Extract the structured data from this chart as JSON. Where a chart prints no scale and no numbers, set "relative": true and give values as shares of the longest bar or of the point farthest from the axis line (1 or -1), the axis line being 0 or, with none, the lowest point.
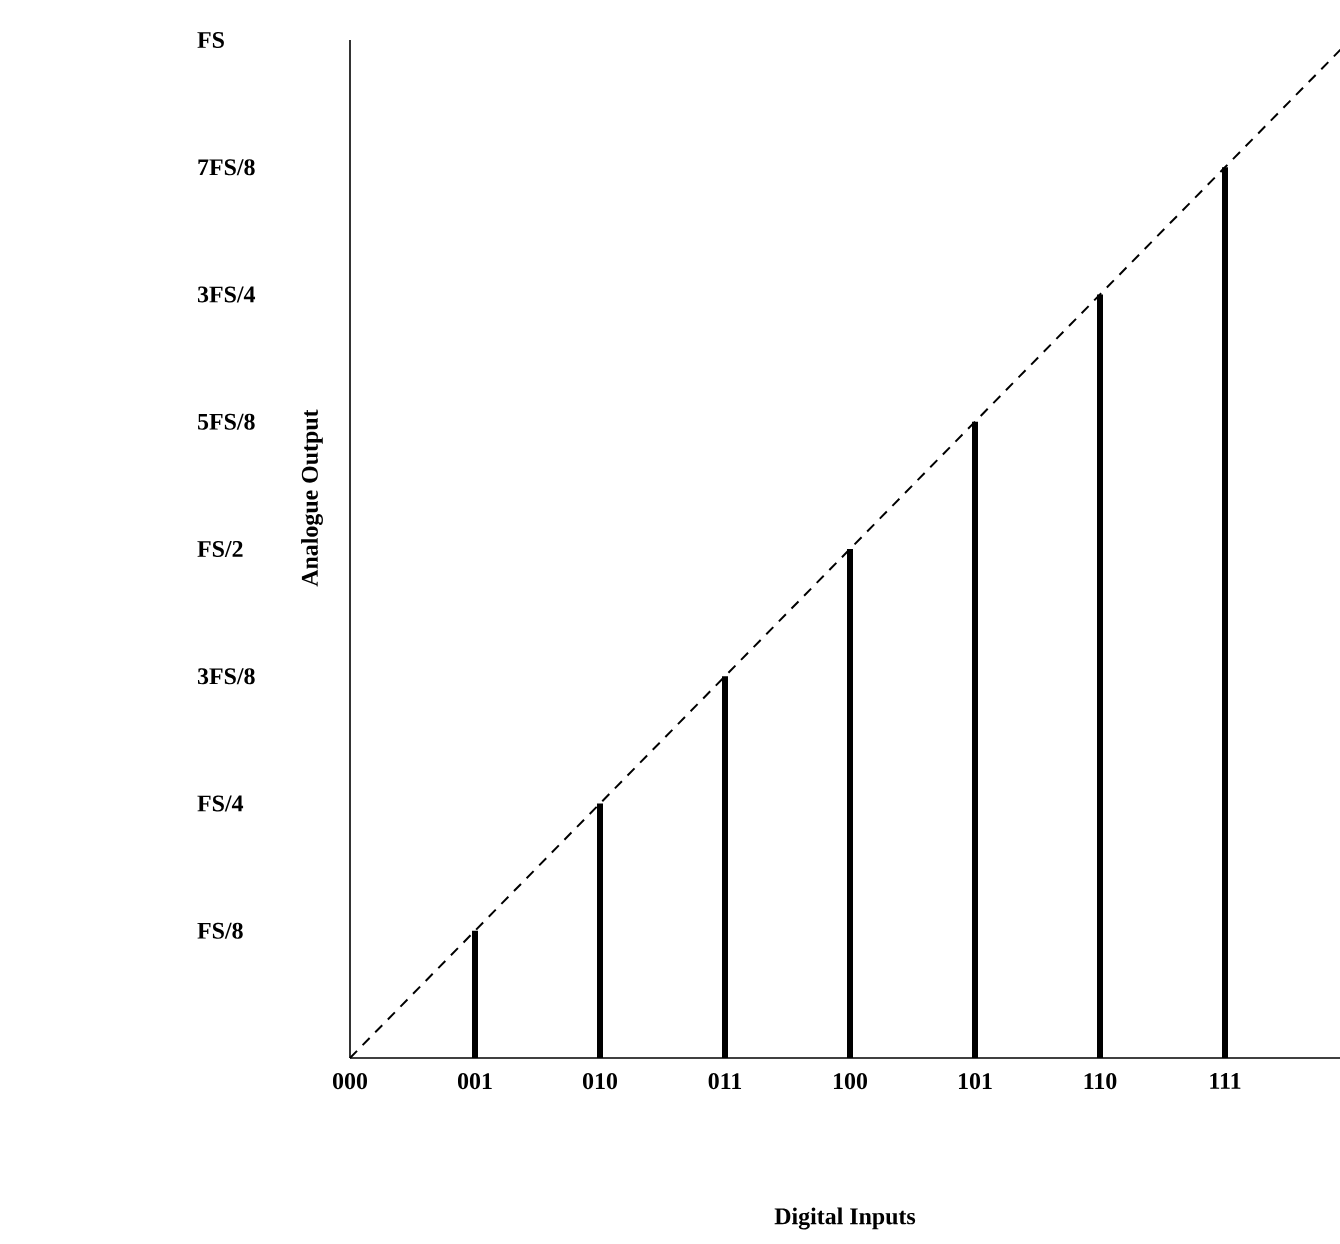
{
  "chart_data": {
    "type": "bar",
    "xlabel": "Digital Inputs",
    "ylabel": "Analogue Output",
    "relative": true,
    "categories": [
      "000",
      "001",
      "010",
      "011",
      "100",
      "101",
      "110",
      "111",
      null
    ],
    "series": [
      {
        "color": "#000000",
        "values": [
          0,
          0.125,
          0.25,
          0.375,
          0.5,
          0.625,
          0.75,
          0.875,
          null
        ]
      },
      {
        "type": "line",
        "color": "#000000",
        "line_style": "dashed",
        "values": [
          0,
          0.125,
          0.25,
          0.375,
          0.5,
          0.625,
          0.75,
          0.875,
          1
        ]
      }
    ],
    "annotations": [
      "FS/8",
      "FS/4",
      "3FS/8",
      "FS/2",
      "5FS/8",
      "3FS/4",
      "7FS/8",
      "FS"
    ]
  }
}
